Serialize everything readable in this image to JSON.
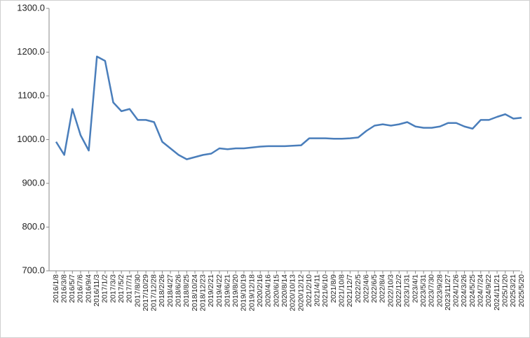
{
  "chart_data": {
    "type": "line",
    "color": "#4a7ebb",
    "categories": [
      "2016/1/8",
      "2016/3/8",
      "2016/5/7",
      "2016/7/6",
      "2016/9/4",
      "2016/11/3",
      "2017/1/2",
      "2017/3/3",
      "2017/5/2",
      "2017/7/1",
      "2017/8/30",
      "2017/10/29",
      "2017/12/28",
      "2018/2/26",
      "2018/4/27",
      "2018/6/26",
      "2018/8/25",
      "2018/10/24",
      "2018/12/23",
      "2019/2/21",
      "2019/4/22",
      "2019/6/21",
      "2019/8/20",
      "2019/10/19",
      "2019/12/18",
      "2020/2/16",
      "2020/4/16",
      "2020/6/15",
      "2020/8/14",
      "2020/10/13",
      "2020/12/12",
      "2021/2/10",
      "2021/4/11",
      "2021/6/10",
      "2021/8/9",
      "2021/10/8",
      "2021/12/7",
      "2022/2/5",
      "2022/4/6",
      "2022/6/5",
      "2022/8/4",
      "2022/10/3",
      "2022/12/2",
      "2023/1/31",
      "2023/4/1",
      "2023/5/31",
      "2023/7/30",
      "2023/9/28",
      "2023/11/27",
      "2024/1/26",
      "2024/3/26",
      "2024/5/25",
      "2024/7/24",
      "2024/9/22",
      "2024/11/21",
      "2025/1/20",
      "2025/3/21",
      "2025/5/20"
    ],
    "values": [
      995,
      965,
      1070,
      1010,
      975,
      1190,
      1180,
      1085,
      1065,
      1070,
      1045,
      1045,
      1040,
      995,
      980,
      965,
      955,
      960,
      965,
      968,
      980,
      978,
      980,
      980,
      982,
      984,
      985,
      985,
      985,
      986,
      987,
      1003,
      1003,
      1003,
      1002,
      1002,
      1003,
      1005,
      1020,
      1032,
      1035,
      1032,
      1035,
      1040,
      1030,
      1027,
      1027,
      1030,
      1038,
      1038,
      1030,
      1025,
      1045,
      1045,
      1052,
      1058,
      1048,
      1050
    ],
    "ylim": [
      700,
      1300
    ],
    "yticks": [
      {
        "value": 700,
        "label": "700.0"
      },
      {
        "value": 800,
        "label": "800.0"
      },
      {
        "value": 900,
        "label": "900.0"
      },
      {
        "value": 1000,
        "label": "1000.0"
      },
      {
        "value": 1100,
        "label": "1100.0"
      },
      {
        "value": 1200,
        "label": "1200.0"
      },
      {
        "value": 1300,
        "label": "1300.0"
      }
    ]
  }
}
